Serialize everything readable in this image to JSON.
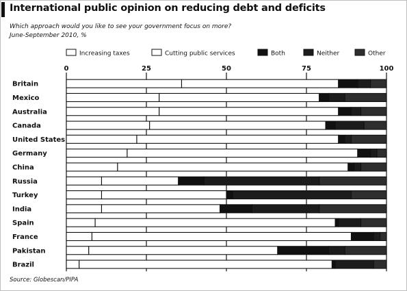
{
  "chart_data": {
    "type": "bar",
    "stacked": true,
    "orientation": "horizontal",
    "title": "International public opinion on reducing debt and deficits",
    "subtitle": "Which approach would you like to see your government focus on more?",
    "subtitle2": "June-September 2010, %",
    "source": "Source: Globescan/PIPA",
    "xlim": [
      0,
      100
    ],
    "xticks": [
      0,
      25,
      50,
      75,
      100
    ],
    "grid": true,
    "legend_position": "top",
    "categories": [
      "Britain",
      "Mexico",
      "Australia",
      "Canada",
      "United States",
      "Germany",
      "China",
      "Russia",
      "Turkey",
      "India",
      "Spain",
      "France",
      "Pakistan",
      "Brazil"
    ],
    "series": [
      {
        "name": "Increasing taxes",
        "color": "#ffffff",
        "values": [
          36,
          29,
          29,
          26,
          22,
          19,
          16,
          11,
          11,
          11,
          9,
          8,
          7,
          4
        ]
      },
      {
        "name": "Cutting public services",
        "color": "#ffffff",
        "values": [
          49,
          50,
          56,
          55,
          63,
          72,
          72,
          24,
          39,
          37,
          75,
          81,
          59,
          79
        ]
      },
      {
        "name": "Both",
        "color": "#111111",
        "values": [
          6,
          3,
          4,
          3,
          2,
          4,
          2,
          8,
          2,
          10,
          1,
          7,
          16,
          1
        ]
      },
      {
        "name": "Neither",
        "color": "#1c1c1c",
        "values": [
          4,
          5,
          3,
          9,
          2,
          2,
          2,
          36,
          37,
          21,
          7,
          2,
          5,
          12
        ]
      },
      {
        "name": "Other",
        "color": "#2e2e2e",
        "values": [
          5,
          13,
          8,
          7,
          11,
          3,
          8,
          21,
          11,
          21,
          8,
          2,
          13,
          4
        ]
      }
    ]
  }
}
